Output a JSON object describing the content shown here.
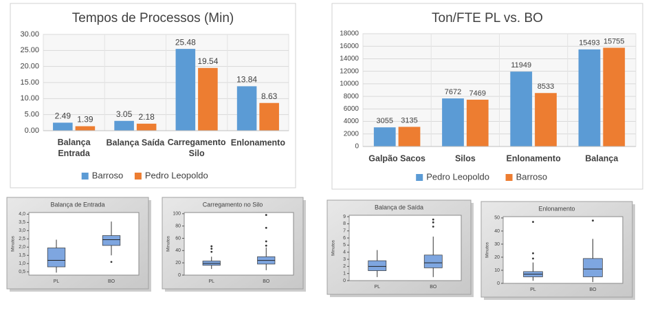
{
  "chart_data": [
    {
      "type": "bar",
      "title": "Tempos de Processos (Min)",
      "categories": [
        "Balança Entrada",
        "Balança Saída",
        "Carregamento Silo",
        "Enlonamento"
      ],
      "series": [
        {
          "name": "Barroso",
          "color": "#5b9bd5",
          "values": [
            2.49,
            3.05,
            25.48,
            13.84
          ]
        },
        {
          "name": "Pedro Leopoldo",
          "color": "#ed7d31",
          "values": [
            1.39,
            2.18,
            19.54,
            8.63
          ]
        }
      ],
      "ylim": [
        0,
        30
      ],
      "yticks": [
        {
          "value": 0,
          "label": "0.00"
        },
        {
          "value": 5,
          "label": "5.00"
        },
        {
          "value": 10,
          "label": "10.00"
        },
        {
          "value": 15,
          "label": "15.00"
        },
        {
          "value": 20,
          "label": "20.00"
        },
        {
          "value": 25,
          "label": "25.00"
        },
        {
          "value": 30,
          "label": "30.00"
        }
      ],
      "grid": true,
      "legend": "bottom"
    },
    {
      "type": "bar",
      "title": "Ton/FTE PL vs. BO",
      "categories": [
        "Galpão Sacos",
        "Silos",
        "Enlonamento",
        "Balança"
      ],
      "series": [
        {
          "name": "Pedro Leopoldo",
          "color": "#5b9bd5",
          "values": [
            3055,
            7672,
            11949,
            15493
          ]
        },
        {
          "name": "Barroso",
          "color": "#ed7d31",
          "values": [
            3135,
            7469,
            8533,
            15755
          ]
        }
      ],
      "ylim": [
        0,
        18000
      ],
      "yticks": [
        0,
        2000,
        4000,
        6000,
        8000,
        10000,
        12000,
        14000,
        16000,
        18000
      ],
      "grid": true,
      "legend": "bottom"
    },
    {
      "type": "box",
      "title": "Balança de Entrada",
      "ylabel": "Minutos",
      "color": "#7ea6e0",
      "categories": [
        "PL",
        "BO"
      ],
      "boxes": [
        {
          "min": 0.45,
          "q1": 0.8,
          "median": 1.2,
          "q3": 1.95,
          "max": 2.45,
          "outliers": []
        },
        {
          "min": 1.5,
          "q1": 2.1,
          "median": 2.45,
          "q3": 2.7,
          "max": 3.55,
          "outliers": [
            1.1
          ]
        }
      ],
      "ylim": [
        0.3,
        4.1
      ],
      "yticks": [
        {
          "value": 0.5,
          "label": "0,5"
        },
        {
          "value": 1,
          "label": "1,0"
        },
        {
          "value": 1.5,
          "label": "1,5"
        },
        {
          "value": 2,
          "label": "2,0"
        },
        {
          "value": 2.5,
          "label": "2,5"
        },
        {
          "value": 3,
          "label": "3,0"
        },
        {
          "value": 3.5,
          "label": "3,5"
        },
        {
          "value": 4,
          "label": "4,0"
        }
      ]
    },
    {
      "type": "box",
      "title": "Carregamento no Silo",
      "ylabel": "Minutos",
      "color": "#7ea6e0",
      "categories": [
        "PL",
        "BO"
      ],
      "boxes": [
        {
          "min": 10,
          "q1": 16,
          "median": 19,
          "q3": 23,
          "max": 30,
          "outliers": [
            38,
            43,
            47
          ]
        },
        {
          "min": 8,
          "q1": 18,
          "median": 24,
          "q3": 30,
          "max": 45,
          "outliers": [
            48,
            55,
            77,
            98
          ]
        }
      ],
      "ylim": [
        0,
        102
      ],
      "yticks": [
        0,
        20,
        40,
        60,
        80,
        100
      ]
    },
    {
      "type": "box",
      "title": "Balança de Saída",
      "ylabel": "Minutos",
      "color": "#7ea6e0",
      "categories": [
        "PL",
        "BO"
      ],
      "boxes": [
        {
          "min": 0.5,
          "q1": 1.4,
          "median": 2.0,
          "q3": 2.8,
          "max": 4.3,
          "outliers": []
        },
        {
          "min": 0.5,
          "q1": 1.8,
          "median": 2.5,
          "q3": 3.6,
          "max": 6.2,
          "outliers": [
            7.6,
            8.2,
            8.6
          ]
        }
      ],
      "ylim": [
        0,
        9.2
      ],
      "yticks": [
        0,
        1,
        2,
        3,
        4,
        5,
        6,
        7,
        8,
        9
      ]
    },
    {
      "type": "box",
      "title": "Enlonamento",
      "ylabel": "Minutos",
      "color": "#7ea6e0",
      "categories": [
        "PL",
        "BO"
      ],
      "boxes": [
        {
          "min": 2,
          "q1": 5,
          "median": 7,
          "q3": 9,
          "max": 16,
          "outliers": [
            19,
            23,
            47
          ]
        },
        {
          "min": 1,
          "q1": 5,
          "median": 11,
          "q3": 19,
          "max": 34,
          "outliers": [
            48
          ]
        }
      ],
      "ylim": [
        0,
        51
      ],
      "yticks": [
        0,
        10,
        20,
        30,
        40,
        50
      ]
    }
  ]
}
